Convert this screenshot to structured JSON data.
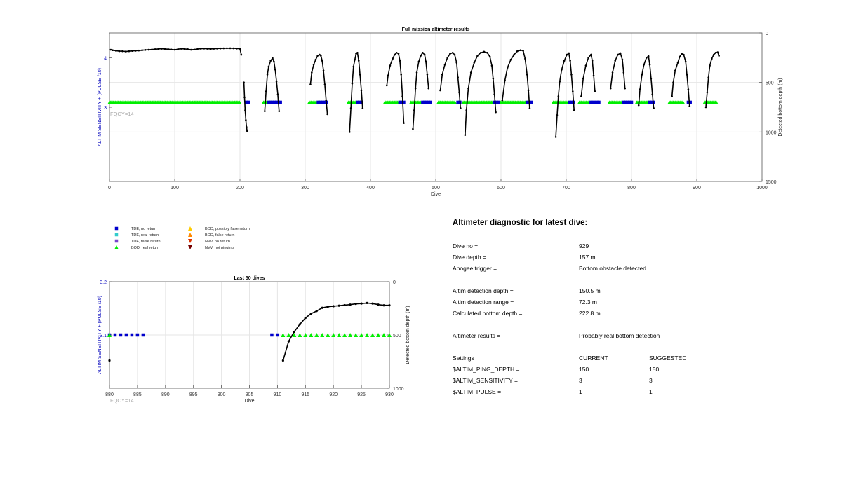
{
  "colors": {
    "grid": "#e6e6e6",
    "trace": "#000000",
    "tde_no_return": "#0000cc",
    "tde_real_return": "#33cccc",
    "tde_false_return": "#7744cc",
    "bod_real_return": "#00ee00",
    "bod_possibly_false": "#ffcc00",
    "bod_false_return": "#ff8800",
    "nvv_no_return": "#dd3300",
    "nvv_not_pinging": "#770000",
    "left_axis_label": "#0000bb",
    "fqcy": "#aaaaaa"
  },
  "chart_data": [
    {
      "id": "full",
      "type": "scatter",
      "title": "Full mission altimeter results",
      "xlabel": "Dive",
      "ylabel_left": "ALTIM SENSITIVITY + (PULSE /10)",
      "ylabel_right": "Detected bottom depth (m)",
      "xlim": [
        0,
        1000
      ],
      "ylim_left": [
        1.5,
        4.5
      ],
      "ylim_right": [
        0,
        1500
      ],
      "right_reversed": true,
      "xticks": [
        0,
        100,
        200,
        300,
        400,
        500,
        600,
        700,
        800,
        900,
        1000
      ],
      "ytick_left": [
        3,
        4
      ],
      "yticks_right": [
        0,
        500,
        1000,
        1500
      ],
      "annotation": "FQCY=14",
      "grid": true,
      "depth_trace": [
        [
          [
            2,
            170
          ],
          [
            5,
            175
          ],
          [
            10,
            180
          ],
          [
            15,
            185
          ],
          [
            20,
            185
          ],
          [
            25,
            188
          ],
          [
            30,
            185
          ],
          [
            35,
            182
          ],
          [
            40,
            180
          ],
          [
            45,
            178
          ],
          [
            50,
            175
          ],
          [
            55,
            172
          ],
          [
            60,
            170
          ],
          [
            65,
            168
          ],
          [
            70,
            165
          ],
          [
            75,
            162
          ],
          [
            80,
            160
          ],
          [
            85,
            162
          ],
          [
            90,
            165
          ],
          [
            95,
            168
          ],
          [
            100,
            170
          ],
          [
            105,
            165
          ],
          [
            110,
            160
          ],
          [
            115,
            162
          ],
          [
            120,
            165
          ],
          [
            125,
            170
          ],
          [
            130,
            168
          ],
          [
            135,
            163
          ],
          [
            140,
            160
          ],
          [
            145,
            158
          ],
          [
            150,
            160
          ],
          [
            155,
            162
          ],
          [
            160,
            160
          ],
          [
            165,
            158
          ],
          [
            170,
            157
          ],
          [
            175,
            156
          ],
          [
            180,
            155
          ],
          [
            185,
            155
          ],
          [
            190,
            156
          ],
          [
            195,
            158
          ],
          [
            200,
            160
          ],
          [
            202,
            220
          ]
        ],
        [
          [
            206,
            500
          ],
          [
            207,
            650
          ],
          [
            208,
            780
          ],
          [
            209,
            880
          ],
          [
            210,
            950
          ],
          [
            211,
            990
          ]
        ],
        [
          [
            238,
            790
          ],
          [
            240,
            590
          ],
          [
            242,
            420
          ],
          [
            244,
            340
          ],
          [
            247,
            280
          ],
          [
            250,
            255
          ],
          [
            252,
            290
          ],
          [
            254,
            370
          ],
          [
            256,
            490
          ],
          [
            258,
            620
          ],
          [
            260,
            790
          ]
        ],
        [
          [
            308,
            520
          ],
          [
            310,
            400
          ],
          [
            313,
            320
          ],
          [
            316,
            270
          ],
          [
            319,
            230
          ],
          [
            322,
            220
          ],
          [
            324,
            230
          ],
          [
            326,
            280
          ],
          [
            328,
            380
          ],
          [
            330,
            520
          ],
          [
            332,
            680
          ],
          [
            334,
            820
          ]
        ],
        [
          [
            368,
            1000
          ],
          [
            370,
            760
          ],
          [
            372,
            510
          ],
          [
            374,
            340
          ],
          [
            376,
            270
          ],
          [
            378,
            210
          ],
          [
            380,
            200
          ],
          [
            382,
            280
          ],
          [
            384,
            420
          ],
          [
            386,
            580
          ],
          [
            388,
            760
          ]
        ],
        [
          [
            425,
            530
          ],
          [
            427,
            430
          ],
          [
            430,
            330
          ],
          [
            434,
            260
          ],
          [
            437,
            220
          ],
          [
            440,
            200
          ],
          [
            443,
            210
          ],
          [
            445,
            280
          ],
          [
            447,
            420
          ],
          [
            449,
            640
          ],
          [
            451,
            910
          ]
        ],
        [
          [
            465,
            970
          ],
          [
            467,
            780
          ],
          [
            469,
            560
          ],
          [
            471,
            400
          ],
          [
            474,
            290
          ],
          [
            477,
            230
          ],
          [
            480,
            200
          ],
          [
            483,
            220
          ],
          [
            485,
            290
          ],
          [
            487,
            420
          ],
          [
            489,
            560
          ]
        ],
        [
          [
            507,
            580
          ],
          [
            510,
            420
          ],
          [
            514,
            320
          ],
          [
            518,
            250
          ],
          [
            522,
            210
          ],
          [
            526,
            200
          ],
          [
            529,
            220
          ],
          [
            532,
            300
          ],
          [
            534,
            450
          ],
          [
            536,
            600
          ],
          [
            538,
            760
          ]
        ],
        [
          [
            545,
            1030
          ],
          [
            547,
            780
          ],
          [
            550,
            560
          ],
          [
            554,
            400
          ],
          [
            559,
            300
          ],
          [
            564,
            230
          ],
          [
            569,
            200
          ],
          [
            574,
            190
          ],
          [
            579,
            200
          ],
          [
            583,
            240
          ],
          [
            586,
            330
          ],
          [
            588,
            460
          ],
          [
            590,
            620
          ],
          [
            592,
            800
          ]
        ],
        [
          [
            602,
            680
          ],
          [
            606,
            480
          ],
          [
            610,
            350
          ],
          [
            615,
            270
          ],
          [
            620,
            220
          ],
          [
            625,
            185
          ],
          [
            630,
            175
          ],
          [
            634,
            180
          ],
          [
            637,
            260
          ],
          [
            640,
            420
          ],
          [
            642,
            580
          ],
          [
            644,
            760
          ]
        ],
        [
          [
            684,
            1050
          ],
          [
            686,
            830
          ],
          [
            688,
            640
          ],
          [
            690,
            490
          ],
          [
            693,
            370
          ],
          [
            697,
            280
          ],
          [
            701,
            220
          ],
          [
            704,
            205
          ],
          [
            706,
            280
          ],
          [
            708,
            420
          ],
          [
            710,
            590
          ],
          [
            712,
            780
          ]
        ],
        [
          [
            723,
            640
          ],
          [
            726,
            460
          ],
          [
            730,
            330
          ],
          [
            734,
            250
          ],
          [
            738,
            220
          ],
          [
            740,
            280
          ],
          [
            742,
            430
          ],
          [
            744,
            590
          ]
        ],
        [
          [
            768,
            560
          ],
          [
            771,
            400
          ],
          [
            775,
            280
          ],
          [
            779,
            220
          ],
          [
            783,
            205
          ],
          [
            786,
            270
          ],
          [
            788,
            400
          ],
          [
            790,
            560
          ]
        ],
        [
          [
            811,
            730
          ],
          [
            813,
            570
          ],
          [
            816,
            420
          ],
          [
            819,
            320
          ],
          [
            823,
            250
          ],
          [
            826,
            235
          ],
          [
            828,
            320
          ],
          [
            830,
            460
          ],
          [
            832,
            620
          ],
          [
            834,
            760
          ]
        ],
        [
          [
            862,
            640
          ],
          [
            864,
            500
          ],
          [
            867,
            380
          ],
          [
            871,
            300
          ],
          [
            874,
            240
          ],
          [
            877,
            210
          ],
          [
            880,
            220
          ],
          [
            883,
            290
          ],
          [
            885,
            420
          ],
          [
            887,
            570
          ],
          [
            889,
            740
          ]
        ],
        [
          [
            914,
            750
          ],
          [
            916,
            600
          ],
          [
            918,
            450
          ],
          [
            920,
            330
          ],
          [
            923,
            260
          ],
          [
            926,
            220
          ],
          [
            929,
            200
          ],
          [
            932,
            195
          ],
          [
            934,
            230
          ]
        ]
      ],
      "tde_runs": [
        [
          210,
          215
        ],
        [
          244,
          262
        ],
        [
          320,
          334
        ],
        [
          380,
          386
        ],
        [
          445,
          452
        ],
        [
          480,
          492
        ],
        [
          534,
          538
        ],
        [
          590,
          596
        ],
        [
          640,
          646
        ],
        [
          705,
          712
        ],
        [
          738,
          750
        ],
        [
          788,
          800
        ],
        [
          828,
          834
        ],
        [
          887,
          892
        ]
      ],
      "bod_runs": [
        [
          0,
          200
        ],
        [
          236,
          258
        ],
        [
          306,
          332
        ],
        [
          366,
          384
        ],
        [
          422,
          448
        ],
        [
          462,
          478
        ],
        [
          504,
          530
        ],
        [
          542,
          588
        ],
        [
          598,
          640
        ],
        [
          680,
          702
        ],
        [
          720,
          738
        ],
        [
          766,
          786
        ],
        [
          808,
          826
        ],
        [
          858,
          880
        ],
        [
          912,
          930
        ]
      ]
    },
    {
      "id": "last50",
      "type": "scatter",
      "title": "Last 50 dives",
      "xlabel": "Dive",
      "ylabel_left": "ALTIM SENSITIVITY + (PULSE /10)",
      "ylabel_right": "Detected bottom depth (m)",
      "xlim": [
        880,
        930
      ],
      "ylim_left": [
        3,
        3.2
      ],
      "ylim_right": [
        0,
        1000
      ],
      "right_reversed": true,
      "xticks": [
        880,
        885,
        890,
        895,
        900,
        905,
        910,
        915,
        920,
        925,
        930
      ],
      "ytick_left": [
        3.1,
        3.2
      ],
      "yticks_right": [
        0,
        500,
        1000
      ],
      "annotation": "FQCY=14",
      "grid": true,
      "depth_points": [
        [
          880,
          740
        ],
        [
          911,
          740
        ],
        [
          912,
          560
        ],
        [
          913,
          470
        ],
        [
          914,
          400
        ],
        [
          915,
          340
        ],
        [
          916,
          300
        ],
        [
          917,
          275
        ],
        [
          918,
          245
        ],
        [
          919,
          235
        ],
        [
          920,
          230
        ],
        [
          921,
          225
        ],
        [
          922,
          220
        ],
        [
          923,
          215
        ],
        [
          924,
          208
        ],
        [
          925,
          205
        ],
        [
          926,
          200
        ],
        [
          927,
          205
        ],
        [
          928,
          215
        ],
        [
          929,
          222
        ],
        [
          930,
          222
        ]
      ],
      "isolated_depth": [
        [
          880,
          740
        ]
      ],
      "tde_points": [
        880,
        881,
        882,
        883,
        884,
        885,
        886,
        909,
        910
      ],
      "bod_points": [
        880,
        911,
        912,
        913,
        914,
        915,
        916,
        917,
        918,
        919,
        920,
        921,
        922,
        923,
        924,
        925,
        926,
        927,
        928,
        929,
        930
      ]
    }
  ],
  "legend": [
    {
      "label": "TDE, no return",
      "marker": "square",
      "color": "#0000cc"
    },
    {
      "label": "TDE, real return",
      "marker": "square",
      "color": "#33cccc"
    },
    {
      "label": "TDE, false return",
      "marker": "square",
      "color": "#7744cc"
    },
    {
      "label": "BOD, real return",
      "marker": "triangle-up",
      "color": "#00ee00"
    },
    {
      "label": "BOD, possibly false return",
      "marker": "triangle-up",
      "color": "#ffcc00"
    },
    {
      "label": "BOD, false return",
      "marker": "triangle-up",
      "color": "#ff8800"
    },
    {
      "label": "NVV, no return",
      "marker": "triangle-down",
      "color": "#dd3300"
    },
    {
      "label": "NVV, not pinging",
      "marker": "triangle-down",
      "color": "#770000"
    }
  ],
  "diagnostic": {
    "title": "Altimeter diagnostic for latest dive:",
    "dive_no_label": "Dive no =",
    "dive_no": "929",
    "dive_depth_label": "Dive depth =",
    "dive_depth": "157 m",
    "apogee_label": "Apogee trigger =",
    "apogee": "Bottom obstacle detected",
    "det_depth_label": "Altim detection depth =",
    "det_depth": "150.5 m",
    "det_range_label": "Altim detection range =",
    "det_range": "72.3 m",
    "calc_depth_label": "Calculated bottom depth =",
    "calc_depth": "222.8 m",
    "results_label": "Altimeter results =",
    "results": "Probably real bottom detection",
    "settings_label": "Settings",
    "current_label": "CURRENT",
    "suggested_label": "SUGGESTED",
    "ping_depth_label": "$ALTIM_PING_DEPTH =",
    "ping_depth_current": "150",
    "ping_depth_suggested": "150",
    "sensitivity_label": "$ALTIM_SENSITIVITY =",
    "sensitivity_current": "3",
    "sensitivity_suggested": "3",
    "pulse_label": "$ALTIM_PULSE =",
    "pulse_current": "1",
    "pulse_suggested": "1"
  }
}
